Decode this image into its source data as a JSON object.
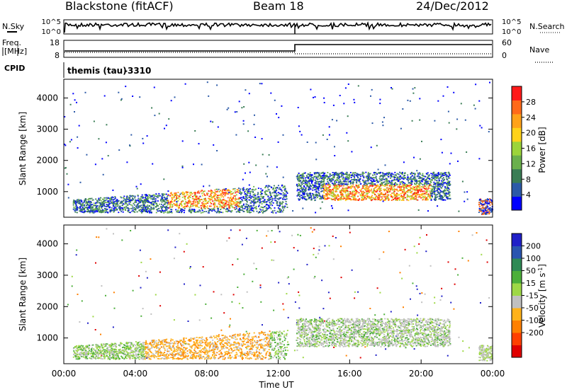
{
  "header": {
    "station": "Blackstone (fitACF)",
    "beam": "Beam 18",
    "date": "24/Dec/2012",
    "cpid_name": "themis (tau)",
    "cpid_value": "-3310"
  },
  "noise_panel": {
    "left_label": "N.Sky",
    "right_label": "N.Search",
    "left_ticks": [
      "10^5",
      "10^0"
    ],
    "right_ticks": [
      "10^5",
      "10^0"
    ]
  },
  "freq_panel": {
    "left_label_1": "Freq.",
    "left_label_2": "[MHz]",
    "left_ticks": [
      "18",
      "8"
    ],
    "right_label": "Nave",
    "right_ticks": [
      "60",
      "0"
    ],
    "cpid_label": "CPID"
  },
  "colors": {
    "power": [
      "#0000ff",
      "#2c5aa8",
      "#3a7d55",
      "#6ab04c",
      "#9cd43a",
      "#ffd21a",
      "#ffa21a",
      "#ff6a1a",
      "#ff1a1a"
    ],
    "velocity": [
      "#2020c8",
      "#2a55b0",
      "#2f8a55",
      "#4caf3a",
      "#9ed846",
      "#c0c0c0",
      "#ffb21a",
      "#ff8000",
      "#ff4000",
      "#e00000"
    ]
  },
  "chart_data": [
    {
      "type": "heatmap",
      "parameter": "power",
      "ylabel": "Slant Range [km]",
      "yticks": [
        "4000",
        "3000",
        "2000",
        "1000"
      ],
      "y_tick_values": [
        4000,
        3000,
        2000,
        1000
      ],
      "ylim": [
        180,
        4600
      ],
      "xlim_hours": [
        0,
        24
      ],
      "colorbar_label": "Power [dB]",
      "colorbar_ticks": [
        "28",
        "24",
        "20",
        "16",
        "12",
        "8",
        "4"
      ],
      "colorbar_tick_values": [
        28,
        24,
        20,
        16,
        12,
        8,
        4
      ],
      "colorbar_range": [
        0,
        32
      ]
    },
    {
      "type": "heatmap",
      "parameter": "velocity",
      "ylabel": "Slant Range [km]",
      "yticks": [
        "4000",
        "3000",
        "2000",
        "1000"
      ],
      "y_tick_values": [
        4000,
        3000,
        2000,
        1000
      ],
      "ylim": [
        180,
        4600
      ],
      "xlim_hours": [
        0,
        24
      ],
      "xticks": [
        "00:00",
        "04:00",
        "08:00",
        "12:00",
        "16:00",
        "20:00",
        "00:00"
      ],
      "x_tick_values": [
        0,
        4,
        8,
        12,
        16,
        20,
        24
      ],
      "xlabel": "Time UT",
      "colorbar_label": "Velocity [m s",
      "colorbar_unit_sup": "-1",
      "colorbar_unit_end": "]",
      "colorbar_ticks": [
        "200",
        "100",
        "50",
        "15",
        "-15",
        "-50",
        "-100",
        "-200"
      ],
      "colorbar_levels": 10
    }
  ]
}
